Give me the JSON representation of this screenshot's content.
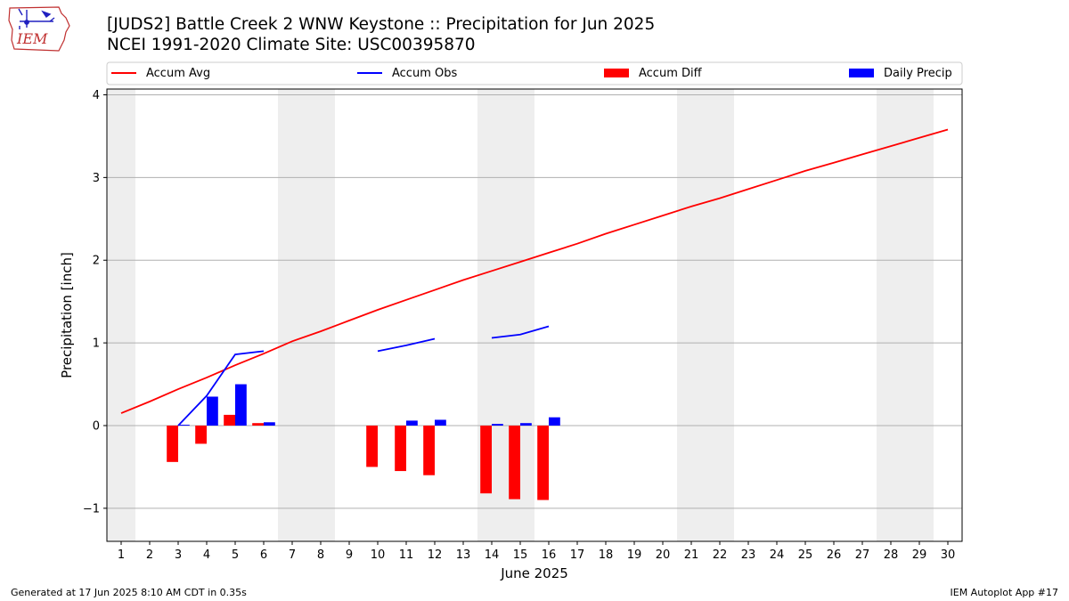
{
  "header": {
    "title_line1": "[JUDS2] Battle Creek 2 WNW Keystone :: Precipitation for Jun 2025",
    "title_line2": "NCEI 1991-2020 Climate Site: USC00395870",
    "logo_text": "IEM"
  },
  "footer": {
    "generated": "Generated at 17 Jun 2025 8:10 AM CDT in 0.35s",
    "app": "IEM Autoplot App #17"
  },
  "colors": {
    "accum_avg": "#ff0000",
    "accum_obs": "#0000ff",
    "accum_diff": "#ff0000",
    "daily_precip": "#0000ff",
    "weekend_shade": "#eeeeee",
    "grid": "#b0b0b0"
  },
  "chart_data": {
    "type": "bar",
    "title": "[JUDS2] Battle Creek 2 WNW Keystone :: Precipitation for Jun 2025",
    "xlabel": "June 2025",
    "ylabel": "Precipitation [inch]",
    "xlim": [
      0.5,
      30.5
    ],
    "ylim": [
      -1.4,
      4.07
    ],
    "x_ticks": [
      1,
      2,
      3,
      4,
      5,
      6,
      7,
      8,
      9,
      10,
      11,
      12,
      13,
      14,
      15,
      16,
      17,
      18,
      19,
      20,
      21,
      22,
      23,
      24,
      25,
      26,
      27,
      28,
      29,
      30
    ],
    "y_ticks": [
      -1,
      0,
      1,
      2,
      3,
      4
    ],
    "grid": "horizontal",
    "legend": {
      "position": "top",
      "entries": [
        "Accum Avg",
        "Accum Obs",
        "Accum Diff",
        "Daily Precip"
      ]
    },
    "weekend_days": [
      1,
      7,
      8,
      14,
      15,
      21,
      22,
      28,
      29
    ],
    "series": [
      {
        "name": "Accum Avg",
        "kind": "line",
        "x": [
          1,
          2,
          3,
          4,
          5,
          6,
          7,
          8,
          9,
          10,
          11,
          12,
          13,
          14,
          15,
          16,
          17,
          18,
          19,
          20,
          21,
          22,
          23,
          24,
          25,
          26,
          27,
          28,
          29,
          30
        ],
        "values": [
          0.15,
          0.29,
          0.44,
          0.58,
          0.73,
          0.87,
          1.02,
          1.14,
          1.27,
          1.4,
          1.52,
          1.64,
          1.76,
          1.87,
          1.98,
          2.09,
          2.2,
          2.32,
          2.43,
          2.54,
          2.65,
          2.75,
          2.86,
          2.97,
          3.08,
          3.18,
          3.28,
          3.38,
          3.48,
          3.58
        ]
      },
      {
        "name": "Accum Obs",
        "kind": "line",
        "x": [
          1,
          2,
          3,
          4,
          5,
          6,
          7,
          8,
          9,
          10,
          11,
          12,
          13,
          14,
          15,
          16
        ],
        "values": [
          null,
          null,
          0.0,
          0.36,
          0.86,
          0.9,
          null,
          null,
          null,
          0.9,
          0.97,
          1.05,
          null,
          1.06,
          1.1,
          1.2
        ]
      },
      {
        "name": "Accum Diff",
        "kind": "bar",
        "x": [
          3,
          4,
          5,
          6,
          10,
          11,
          12,
          14,
          15,
          16
        ],
        "values": [
          -0.44,
          -0.22,
          0.13,
          0.03,
          -0.5,
          -0.55,
          -0.6,
          -0.82,
          -0.89,
          -0.9
        ]
      },
      {
        "name": "Daily Precip",
        "kind": "bar",
        "x": [
          3,
          4,
          5,
          6,
          11,
          12,
          14,
          15,
          16
        ],
        "values": [
          0.01,
          0.35,
          0.5,
          0.04,
          0.06,
          0.07,
          0.02,
          0.03,
          0.1
        ]
      }
    ]
  }
}
